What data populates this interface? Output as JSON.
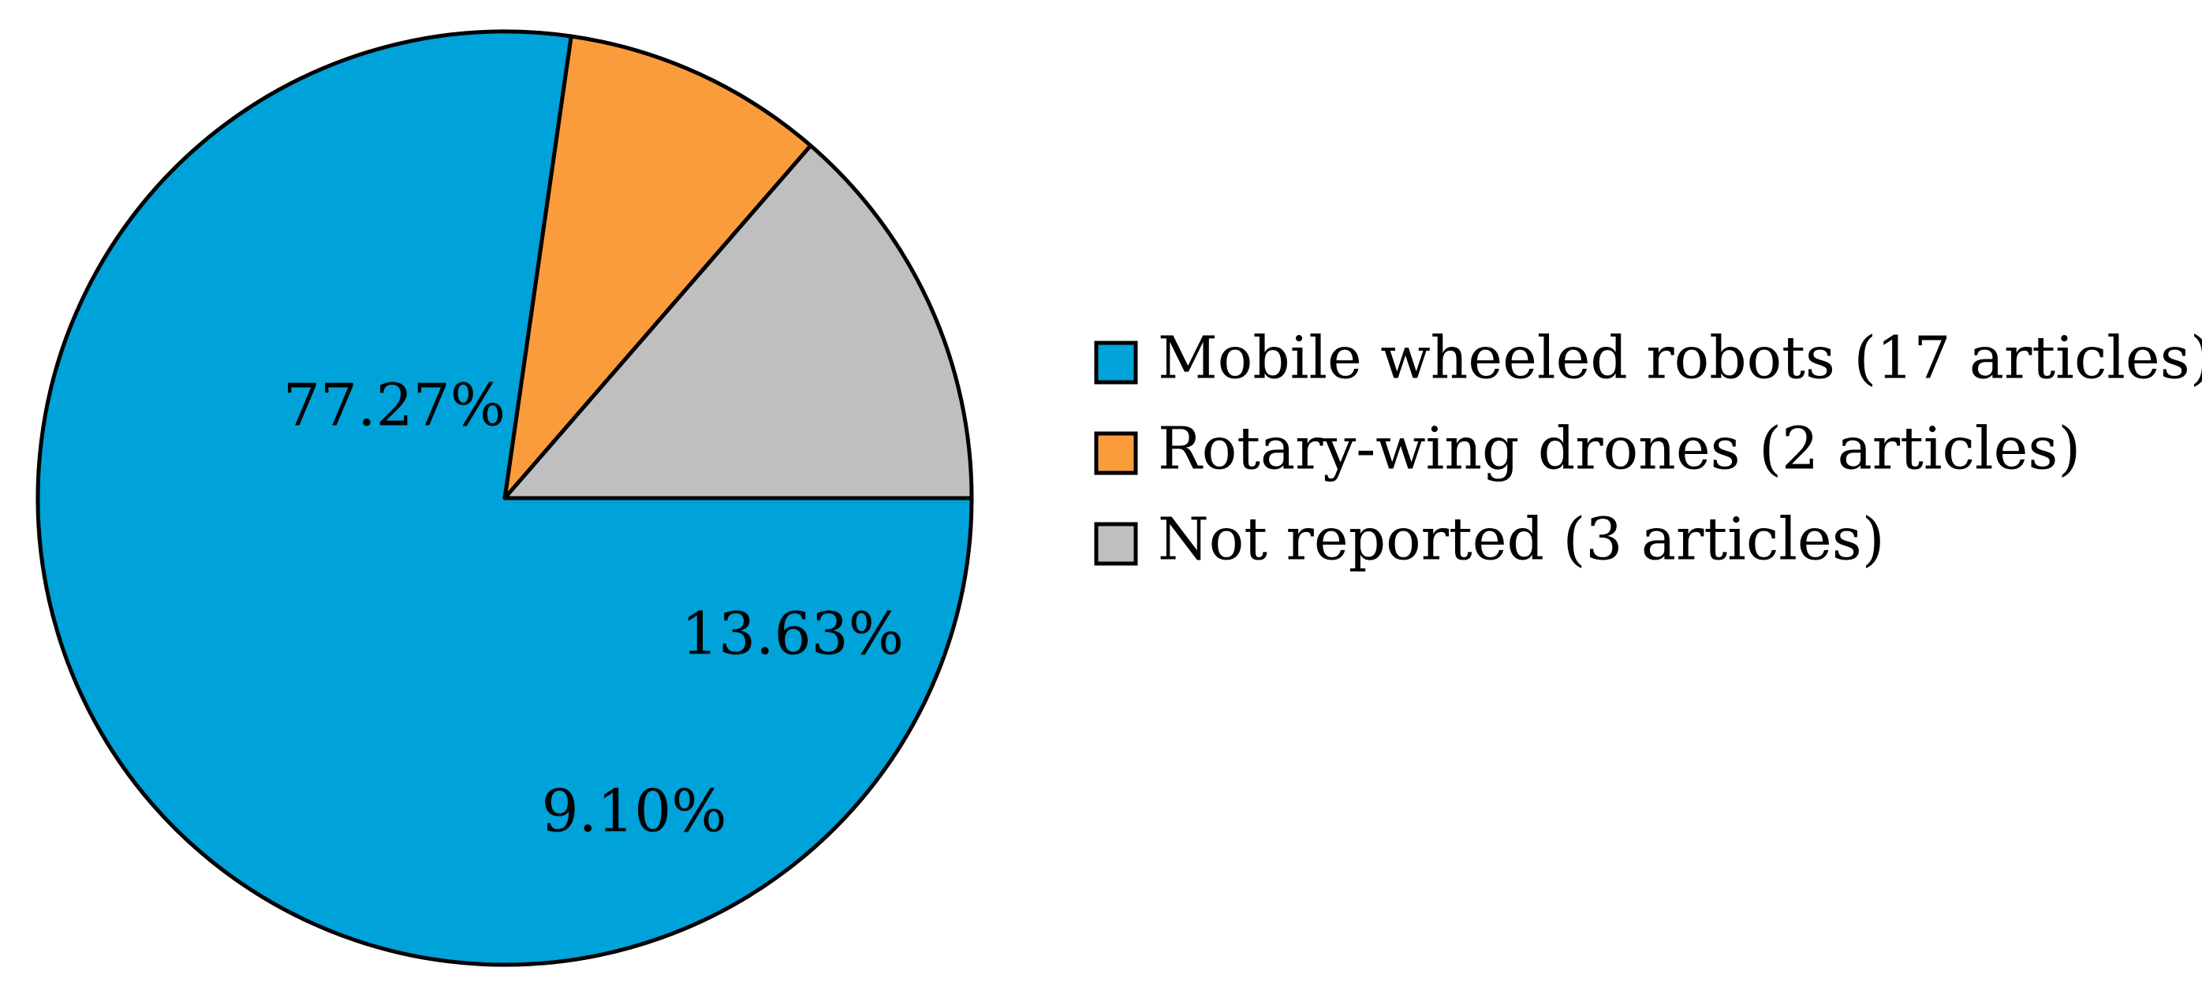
{
  "chart_data": {
    "type": "pie",
    "title": "",
    "start_angle_deg": 0,
    "direction": "clockwise",
    "slices": [
      {
        "legend": "Mobile wheeled robots (17 articles)",
        "label": "77.27%",
        "value": 77.27,
        "color": "#00A2DA"
      },
      {
        "legend": "Rotary-wing drones (2 articles)",
        "label": "9.10%",
        "value": 9.1,
        "color": "#FA9C3B"
      },
      {
        "legend": "Not reported (3 articles)",
        "label": "13.63%",
        "value": 13.63,
        "color": "#BFBFBF"
      }
    ],
    "draw_order": [
      1,
      2,
      0
    ],
    "legend_position": "right"
  }
}
